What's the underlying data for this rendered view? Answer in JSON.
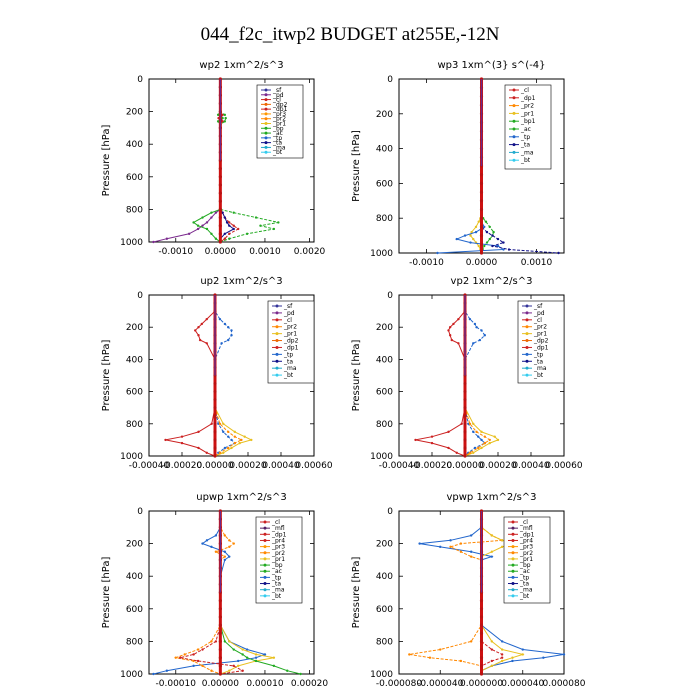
{
  "figure_title": "044_f2c_itwp2  BUDGET at255E,-12N",
  "colors": {
    "sf": "#333399",
    "pd": "#7b2a8e",
    "cl": "#cc2222",
    "dp1": "#cc2222",
    "dp2": "#ee6600",
    "pr1": "#e8c020",
    "pr2": "#ff8800",
    "pr4": "#cc2222",
    "pr3": "#ff9900",
    "mfl": "#552266",
    "bp": "#22aa22",
    "ac": "#22aa22",
    "tp": "#2266cc",
    "ta": "#111188",
    "ma": "#22aacc",
    "bt": "#33ccee"
  },
  "chart_data": [
    {
      "type": "line",
      "title": "wp2   1xm^2/s^3",
      "ylabel": "Pressure [hPa]",
      "ylim": [
        1000,
        0
      ],
      "yticks": [
        "0",
        "200",
        "400",
        "600",
        "800",
        "1000"
      ],
      "xlim": [
        -0.0016,
        0.0021
      ],
      "xticks": [
        -0.001,
        0.0,
        0.001,
        0.002
      ],
      "xtick_labels": [
        "-0.0010",
        "0.0000",
        "0.0010",
        "0.0020"
      ],
      "legend": [
        "_sf",
        "_pd",
        "_cl",
        "_dp2",
        "_dp1",
        "_pr3",
        "_pr2",
        "_pr1",
        "_bp",
        "_ac",
        "_tp",
        "_ta",
        "_ma",
        "_bt"
      ],
      "pressure": [
        0,
        100,
        200,
        220,
        240,
        260,
        280,
        300,
        400,
        500,
        600,
        700,
        800,
        820,
        850,
        880,
        900,
        920,
        950,
        980,
        1000
      ],
      "series": [
        {
          "name": "_pd",
          "values": [
            0,
            0,
            0,
            3e-05,
            4e-05,
            3e-05,
            0,
            0,
            0,
            0,
            0,
            0,
            0,
            -0.0001,
            -0.0002,
            -0.0003,
            -0.0004,
            -0.0005,
            -0.0007,
            -0.0012,
            -0.0015
          ]
        },
        {
          "name": "_dp1",
          "values": [
            0,
            0,
            0,
            5e-05,
            -4e-05,
            5e-05,
            0,
            0,
            0,
            0,
            0,
            0,
            0,
            5e-05,
            0.0001,
            0.0002,
            0.0003,
            0.0004,
            0.0002,
            0.0001,
            0
          ]
        },
        {
          "name": "_bp",
          "values": [
            0,
            0,
            0,
            -5e-05,
            5e-05,
            -5e-05,
            0,
            0,
            0,
            0,
            0,
            0,
            0,
            -0.0002,
            -0.0004,
            -0.0006,
            -0.0005,
            -0.0003,
            -0.0002,
            -0.0001,
            0
          ]
        },
        {
          "name": "_ac",
          "values": [
            0,
            0,
            0,
            0.0001,
            0.00012,
            0.0001,
            0,
            0,
            0,
            0,
            0,
            0,
            0,
            0.0003,
            0.0008,
            0.0013,
            0.0009,
            0.0012,
            0.0006,
            0.0002,
            0
          ]
        },
        {
          "name": "_ta",
          "values": [
            0,
            0,
            0,
            0,
            0,
            0,
            0,
            0,
            0,
            0,
            0,
            0,
            0,
            5e-05,
            0.0001,
            0.00015,
            0.0002,
            0.0003,
            0.0001,
            0,
            0
          ]
        }
      ]
    },
    {
      "type": "line",
      "title": "wp3   1xm^(3} s^(-4}",
      "ylabel": "Pressure [hPa]",
      "ylim": [
        1000,
        0
      ],
      "yticks": [
        "0",
        "200",
        "400",
        "600",
        "800",
        "1000"
      ],
      "xlim": [
        -0.0015,
        0.0015
      ],
      "xticks": [
        -0.001,
        0.0,
        0.001
      ],
      "xtick_labels": [
        "-0.0010",
        "0.0000",
        "0.0010"
      ],
      "legend": [
        "_cl",
        "_dp1",
        "_pr2",
        "_pr1",
        "_bp1",
        "_ac",
        "_tp",
        "_ta",
        "_ma",
        "_bt"
      ],
      "pressure": [
        0,
        100,
        200,
        400,
        600,
        700,
        780,
        800,
        820,
        850,
        880,
        900,
        920,
        940,
        960,
        980,
        1000
      ],
      "series": [
        {
          "name": "_pr1",
          "values": [
            0,
            0,
            0,
            0,
            0,
            0,
            0,
            -2e-05,
            -5e-05,
            -0.0001,
            -0.00018,
            -0.0002,
            -0.00015,
            -0.0001,
            -5e-05,
            -2e-05,
            0
          ]
        },
        {
          "name": "_ac",
          "values": [
            0,
            0,
            0,
            0,
            0,
            0,
            0,
            3e-05,
            8e-05,
            0.00015,
            0.00022,
            0.0002,
            0.00015,
            0.0001,
            5e-05,
            2e-05,
            0
          ]
        },
        {
          "name": "_tp",
          "values": [
            0,
            0,
            0,
            0,
            0,
            0,
            0,
            0,
            0,
            5e-05,
            -0.0001,
            -0.0003,
            -0.00045,
            -0.0002,
            0.0003,
            0.0004,
            -0.0008
          ]
        },
        {
          "name": "_ta",
          "values": [
            0,
            0,
            0,
            0,
            0,
            0,
            0,
            0,
            0,
            0,
            0.0001,
            0.0002,
            0.0003,
            0.0004,
            0.0002,
            0.0005,
            0.0014
          ]
        },
        {
          "name": "_cl",
          "values": [
            0,
            0,
            0,
            0,
            0,
            0,
            0,
            0,
            0,
            0,
            0,
            0,
            0,
            0,
            0,
            0,
            0
          ]
        }
      ]
    },
    {
      "type": "line",
      "title": "up2   1xm^2/s^3",
      "ylabel": "Pressure [hPa]",
      "ylim": [
        1000,
        0
      ],
      "yticks": [
        "0",
        "200",
        "400",
        "600",
        "800",
        "1000"
      ],
      "xlim": [
        -0.0004,
        0.0006
      ],
      "xticks": [
        -0.0004,
        -0.0002,
        0.0,
        0.0002,
        0.0004,
        0.0006
      ],
      "xtick_labels": [
        "-0.00040",
        "-0.00020",
        "0.00000",
        "0.00020",
        "0.00040",
        "0.00060"
      ],
      "legend": [
        "_sf",
        "_pd",
        "_cl",
        "_pr2",
        "_pr1",
        "_dp2",
        "_dp1",
        "_tp",
        "_ta",
        "_ma",
        "_bt"
      ],
      "pressure": [
        0,
        100,
        150,
        180,
        200,
        220,
        250,
        280,
        300,
        400,
        500,
        600,
        700,
        800,
        850,
        880,
        900,
        920,
        950,
        980,
        1000
      ],
      "series": [
        {
          "name": "_dp1",
          "values": [
            0,
            0,
            -5e-05,
            -8e-05,
            -0.0001,
            -0.00012,
            -0.0001,
            -9e-05,
            -5e-05,
            0,
            0,
            0,
            0,
            -2e-05,
            -0.0001,
            -0.0002,
            -0.0003,
            -0.0002,
            -0.0001,
            -5e-05,
            0
          ]
        },
        {
          "name": "_tp",
          "values": [
            0,
            0,
            3e-05,
            6e-05,
            8e-05,
            0.0001,
            0.0001,
            8e-05,
            4e-05,
            0,
            0,
            0,
            0,
            2e-05,
            5e-05,
            8e-05,
            0.0001,
            0.00012,
            6e-05,
            2e-05,
            0
          ]
        },
        {
          "name": "_pr1",
          "values": [
            0,
            0,
            0,
            0,
            0,
            0,
            0,
            0,
            0,
            0,
            0,
            0,
            0,
            5e-05,
            0.00012,
            0.00018,
            0.00022,
            0.00015,
            0.0001,
            5e-05,
            0
          ]
        },
        {
          "name": "_pr2",
          "values": [
            0,
            0,
            0,
            0,
            0,
            0,
            0,
            0,
            0,
            0,
            0,
            0,
            0,
            3e-05,
            8e-05,
            0.00012,
            0.00016,
            0.00012,
            8e-05,
            3e-05,
            0
          ]
        }
      ]
    },
    {
      "type": "line",
      "title": "vp2   1xm^2/s^3",
      "ylabel": "Pressure [hPa]",
      "ylim": [
        1000,
        0
      ],
      "yticks": [
        "0",
        "200",
        "400",
        "600",
        "800",
        "1000"
      ],
      "xlim": [
        -0.0004,
        0.0006
      ],
      "xticks": [
        -0.0004,
        -0.0002,
        0.0,
        0.0002,
        0.0004,
        0.0006
      ],
      "xtick_labels": [
        "-0.00040",
        "-0.00020",
        "0.00000",
        "0.00020",
        "0.00040",
        "0.00060"
      ],
      "legend": [
        "_sf",
        "_pd",
        "_cl",
        "_pr2",
        "_pr1",
        "_dp2",
        "_dp1",
        "_tp",
        "_ta",
        "_ma",
        "_bt"
      ],
      "pressure": [
        0,
        100,
        150,
        180,
        200,
        220,
        250,
        280,
        300,
        400,
        500,
        600,
        700,
        800,
        850,
        880,
        900,
        920,
        950,
        980,
        1000
      ],
      "series": [
        {
          "name": "_dp1",
          "values": [
            0,
            0,
            -4e-05,
            -7e-05,
            -9e-05,
            -0.0001,
            -9e-05,
            -8e-05,
            -4e-05,
            0,
            0,
            0,
            0,
            -2e-05,
            -0.0001,
            -0.0002,
            -0.0003,
            -0.0002,
            -0.0001,
            -5e-05,
            0
          ]
        },
        {
          "name": "_tp",
          "values": [
            0,
            0,
            3e-05,
            6e-05,
            7e-05,
            0.0001,
            0.00012,
            9e-05,
            5e-05,
            0,
            0,
            0,
            0,
            2e-05,
            5e-05,
            8e-05,
            0.0001,
            0.00012,
            6e-05,
            2e-05,
            0
          ]
        },
        {
          "name": "_pr1",
          "values": [
            0,
            0,
            0,
            0,
            0,
            0,
            0,
            0,
            0,
            0,
            0,
            0,
            0,
            5e-05,
            0.0001,
            0.00018,
            0.0002,
            0.00015,
            0.0001,
            5e-05,
            0
          ]
        },
        {
          "name": "_pr2",
          "values": [
            0,
            0,
            0,
            0,
            0,
            0,
            0,
            0,
            0,
            0,
            0,
            0,
            0,
            3e-05,
            7e-05,
            0.00012,
            0.00015,
            0.00012,
            8e-05,
            3e-05,
            0
          ]
        }
      ]
    },
    {
      "type": "line",
      "title": "upwp   1xm^2/s^3",
      "ylabel": "Pressure [hPa]",
      "ylim": [
        1000,
        0
      ],
      "yticks": [
        "0",
        "200",
        "400",
        "600",
        "800",
        "1000"
      ],
      "xlim": [
        -0.00016,
        0.00021
      ],
      "xticks": [
        -0.0001,
        0.0,
        0.0001,
        0.0002
      ],
      "xtick_labels": [
        "-0.00010",
        "0.00000",
        "0.00010",
        "0.00020"
      ],
      "legend": [
        "_cl",
        "_mfl",
        "_dp1",
        "_pr4",
        "_pr3",
        "_pr2",
        "_pr1",
        "_bp",
        "_ac",
        "_tp",
        "_ta",
        "_ma",
        "_bt"
      ],
      "pressure": [
        0,
        100,
        150,
        180,
        200,
        220,
        250,
        280,
        300,
        400,
        500,
        600,
        700,
        800,
        850,
        880,
        900,
        920,
        950,
        980,
        1000
      ],
      "series": [
        {
          "name": "_tp",
          "values": [
            0,
            0,
            -1e-05,
            -3e-05,
            -4e-05,
            -2e-05,
            1e-05,
            2e-05,
            1e-05,
            0,
            0,
            0,
            0,
            2e-05,
            6e-05,
            0.0001,
            8e-05,
            4e-05,
            -6e-05,
            -0.00012,
            -0.00015
          ]
        },
        {
          "name": "_pr2",
          "values": [
            0,
            0,
            1e-05,
            2e-05,
            3e-05,
            2e-05,
            -1e-05,
            1e-05,
            0,
            0,
            0,
            0,
            0,
            -2e-05,
            -5e-05,
            -8e-05,
            -0.0001,
            -6e-05,
            -4e-05,
            -2e-05,
            0
          ]
        },
        {
          "name": "_pr1",
          "values": [
            0,
            0,
            0,
            0,
            0,
            0,
            0,
            0,
            0,
            0,
            0,
            0,
            0,
            2e-05,
            5e-05,
            8e-05,
            0.00012,
            8e-05,
            4e-05,
            2e-05,
            0
          ]
        },
        {
          "name": "_dp1",
          "values": [
            0,
            0,
            0,
            0,
            0,
            0,
            0,
            0,
            0,
            0,
            0,
            0,
            0,
            -1e-05,
            -4e-05,
            -6e-05,
            -9e-05,
            -5e-05,
            3e-05,
            5e-05,
            0
          ]
        },
        {
          "name": "_ac",
          "values": [
            0,
            0,
            0,
            0,
            0,
            0,
            0,
            0,
            0,
            0,
            0,
            0,
            0,
            1e-05,
            3e-05,
            5e-05,
            6e-05,
            8e-05,
            0.00012,
            0.00015,
            0.00018
          ]
        }
      ]
    },
    {
      "type": "line",
      "title": "vpwp   1xm^2/s^3",
      "ylabel": "Pressure [hPa]",
      "ylim": [
        1000,
        0
      ],
      "yticks": [
        "0",
        "200",
        "400",
        "600",
        "800",
        "1000"
      ],
      "xlim": [
        -8e-05,
        8e-05
      ],
      "xticks": [
        -8e-05,
        -4e-05,
        0.0,
        4e-05,
        8e-05
      ],
      "xtick_labels": [
        "-0.000080",
        "-0.000040",
        "0.000000",
        "0.000040",
        "0.000080"
      ],
      "legend": [
        "_cl",
        "_mfl",
        "_dp1",
        "_pr4",
        "_pr3",
        "_pr2",
        "_pr1",
        "_bp",
        "_ac",
        "_tp",
        "_ta",
        "_ma",
        "_bt"
      ],
      "pressure": [
        0,
        100,
        150,
        180,
        200,
        220,
        250,
        280,
        300,
        400,
        500,
        600,
        700,
        800,
        850,
        880,
        900,
        920,
        950,
        980,
        1000
      ],
      "series": [
        {
          "name": "_tp",
          "values": [
            0,
            0,
            -1e-05,
            -3e-05,
            -6e-05,
            -4e-05,
            -1e-05,
            1e-05,
            0,
            0,
            0,
            0,
            0,
            2e-05,
            4e-05,
            8e-05,
            6e-05,
            3e-05,
            1e-05,
            0,
            0
          ]
        },
        {
          "name": "_pr2",
          "values": [
            0,
            0,
            1e-05,
            2e-05,
            -2e-05,
            -3e-05,
            -2e-05,
            -1e-05,
            0,
            0,
            0,
            0,
            0,
            -1e-05,
            -4e-05,
            -7e-05,
            -5e-05,
            -2e-05,
            0,
            0,
            0
          ]
        },
        {
          "name": "_pr1",
          "values": [
            0,
            0,
            1e-05,
            2e-05,
            3e-05,
            2e-05,
            1e-05,
            0,
            0,
            0,
            0,
            0,
            0,
            1e-05,
            2e-05,
            4e-05,
            3e-05,
            2e-05,
            1e-05,
            0,
            0
          ]
        },
        {
          "name": "_dp1",
          "values": [
            0,
            0,
            0,
            0,
            0,
            0,
            0,
            0,
            0,
            0,
            0,
            0,
            0,
            0,
            1e-05,
            2e-05,
            2e-05,
            1e-05,
            0,
            0,
            0
          ]
        }
      ]
    }
  ]
}
